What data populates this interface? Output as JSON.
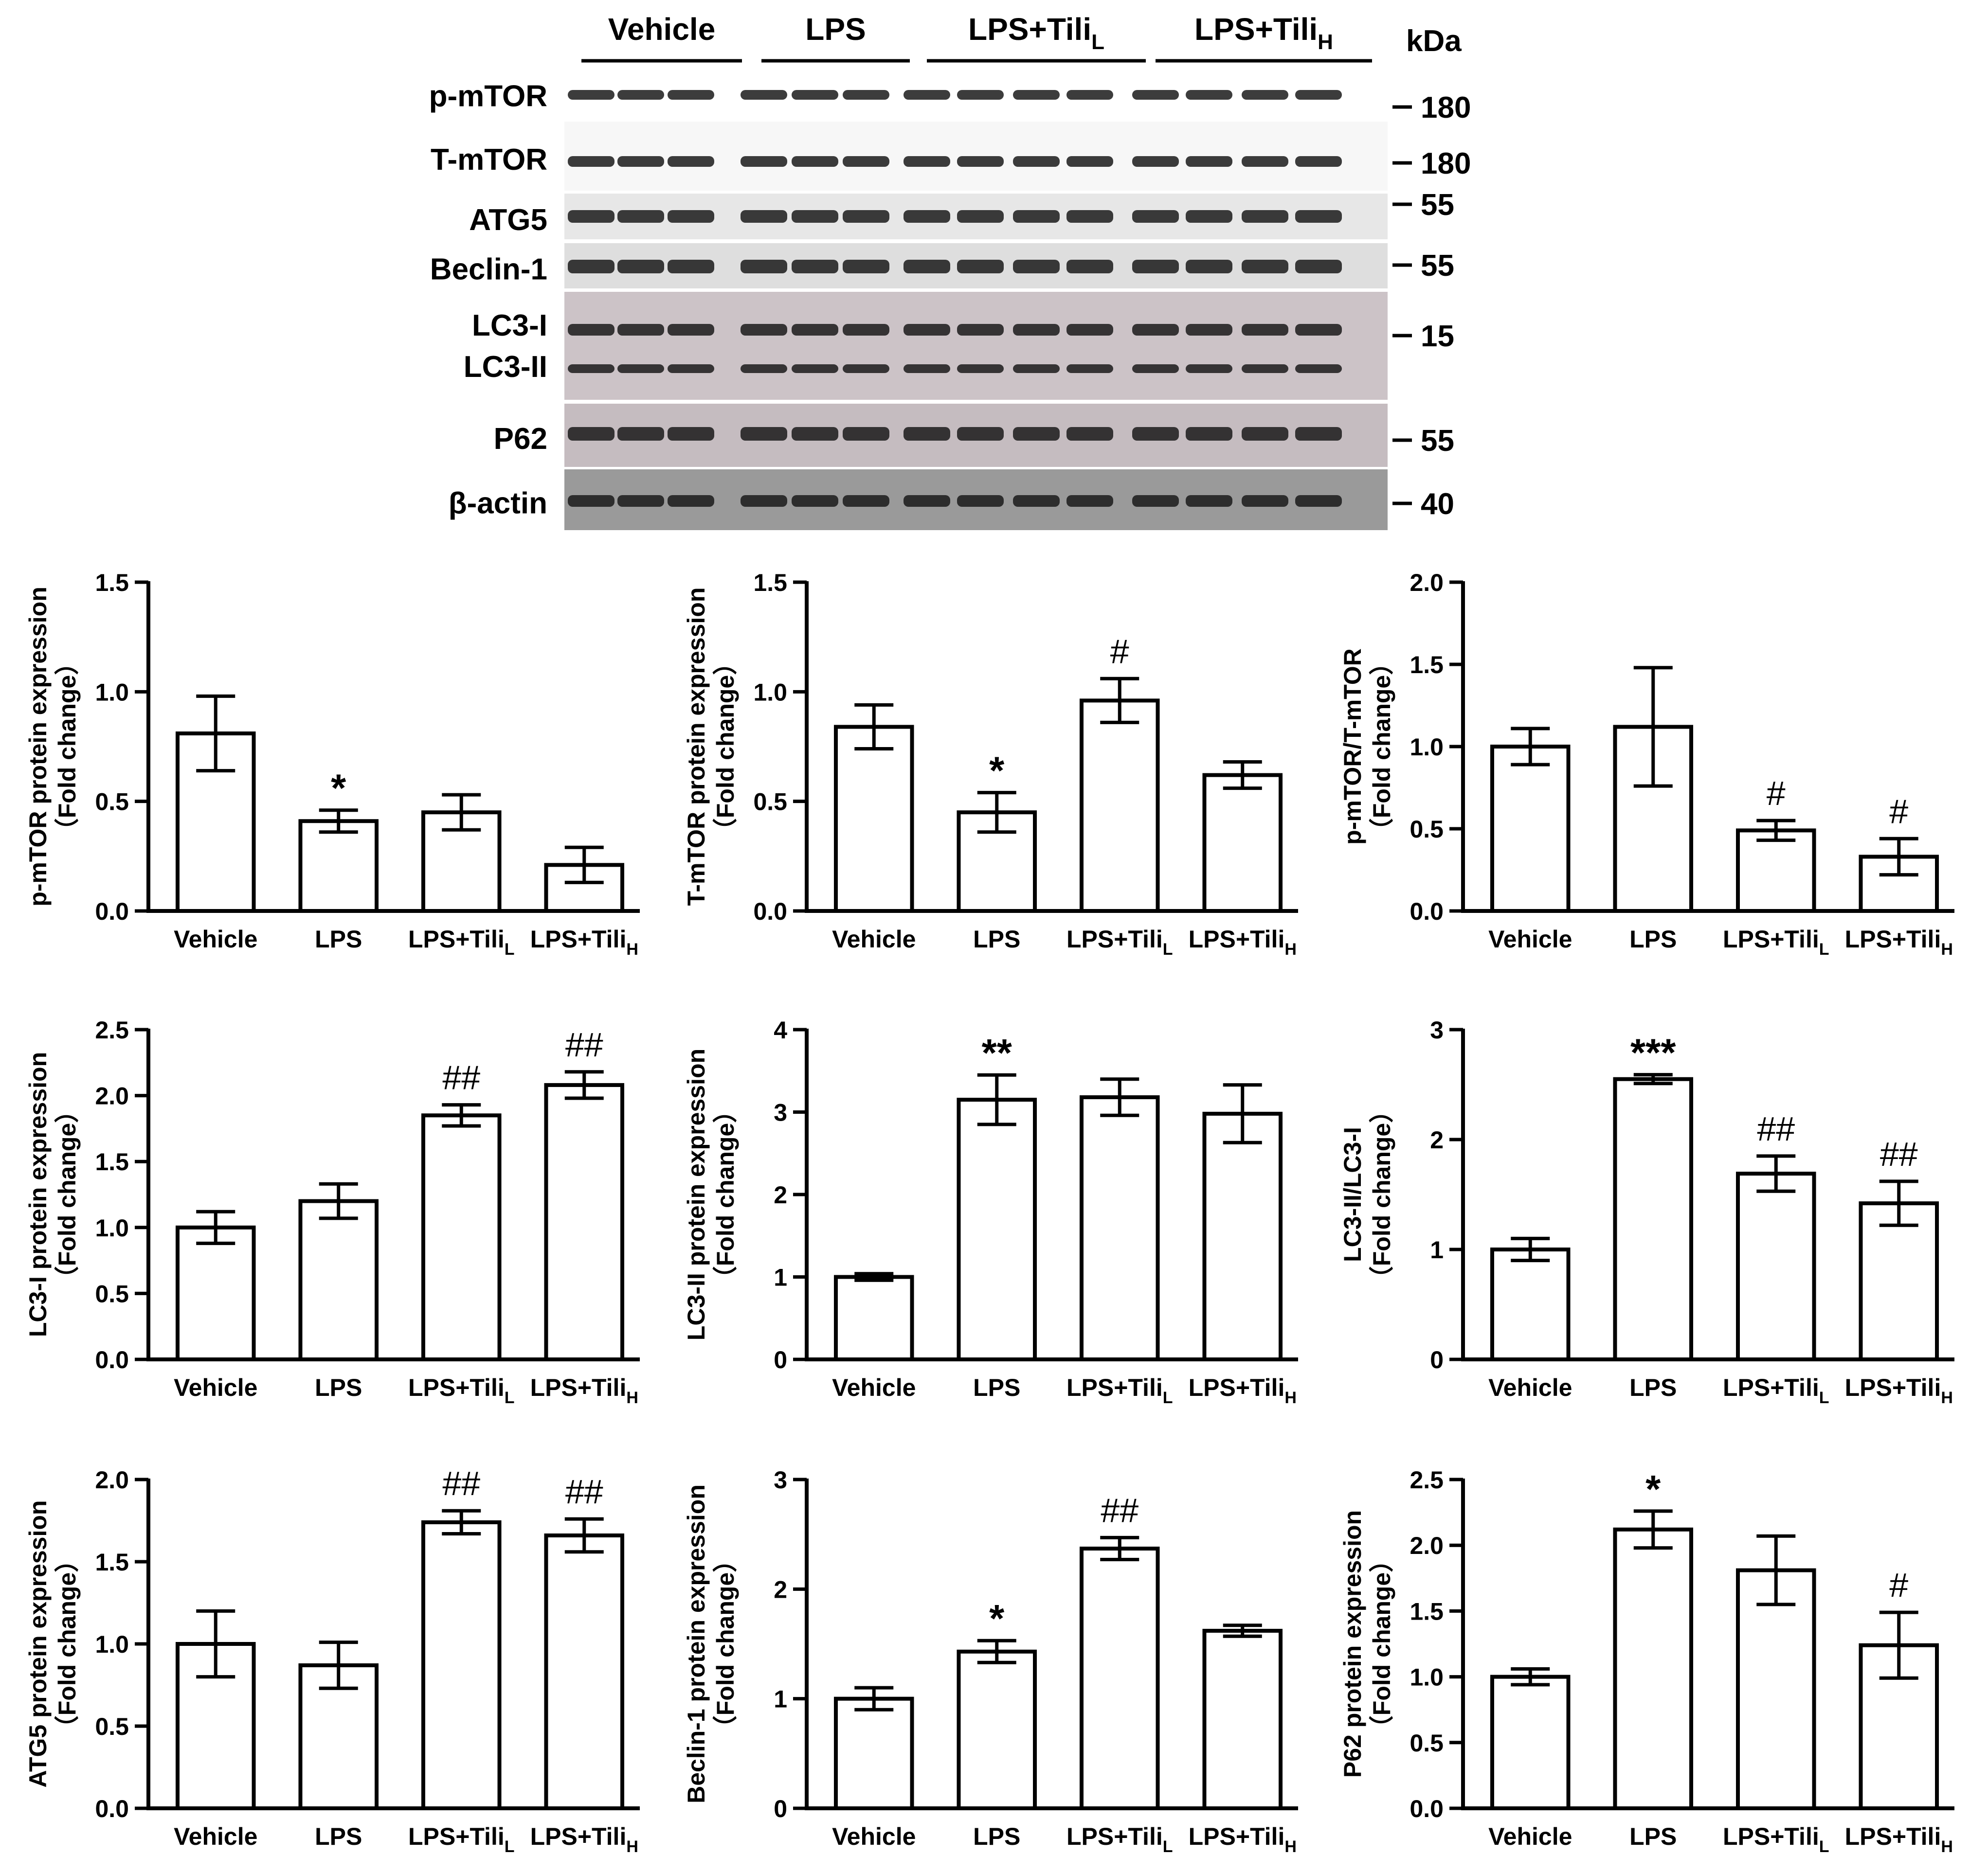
{
  "blot": {
    "groups": [
      {
        "name": "Vehicle",
        "sub": ""
      },
      {
        "name": "LPS",
        "sub": ""
      },
      {
        "name": "LPS+Tili",
        "sub": "L"
      },
      {
        "name": "LPS+Tili",
        "sub": "H"
      }
    ],
    "kda_label": "kDa",
    "rows": [
      {
        "labels": [
          "p-mTOR"
        ],
        "kda": [
          "180"
        ]
      },
      {
        "labels": [
          "T-mTOR"
        ],
        "kda": [
          "180"
        ]
      },
      {
        "labels": [
          "ATG5"
        ],
        "kda": [
          "55"
        ]
      },
      {
        "labels": [
          "Beclin-1"
        ],
        "kda": [
          "55"
        ]
      },
      {
        "labels": [
          "LC3-I",
          "LC3-II"
        ],
        "kda": [
          "15"
        ]
      },
      {
        "labels": [
          "P62"
        ],
        "kda": [
          "55"
        ]
      },
      {
        "labels": [
          "β-actin"
        ],
        "kda": [
          "40"
        ]
      }
    ]
  },
  "chart_data": [
    {
      "type": "bar",
      "ylabel": "p-mTOR protein expression",
      "ylabel2": "（Fold change）",
      "categories": [
        "Vehicle",
        "LPS",
        "LPS+Tili",
        "LPS+Tili"
      ],
      "category_subs": [
        "",
        "",
        "L",
        "H"
      ],
      "ylim": [
        0,
        1.5
      ],
      "yticks": [
        "0.0",
        "0.5",
        "1.0",
        "1.5"
      ],
      "values": [
        0.81,
        0.41,
        0.45,
        0.21
      ],
      "errors": [
        0.17,
        0.05,
        0.08,
        0.08
      ],
      "annotations": [
        "",
        "*",
        "",
        ""
      ]
    },
    {
      "type": "bar",
      "ylabel": "T-mTOR protein expression",
      "ylabel2": "（Fold change）",
      "categories": [
        "Vehicle",
        "LPS",
        "LPS+Tili",
        "LPS+Tili"
      ],
      "category_subs": [
        "",
        "",
        "L",
        "H"
      ],
      "ylim": [
        0,
        1.5
      ],
      "yticks": [
        "0.0",
        "0.5",
        "1.0",
        "1.5"
      ],
      "values": [
        0.84,
        0.45,
        0.96,
        0.62
      ],
      "errors": [
        0.1,
        0.09,
        0.1,
        0.06
      ],
      "annotations": [
        "",
        "*",
        "#",
        ""
      ]
    },
    {
      "type": "bar",
      "ylabel": "p-mTOR/T-mTOR",
      "ylabel2": "（Fold change）",
      "categories": [
        "Vehicle",
        "LPS",
        "LPS+Tili",
        "LPS+Tili"
      ],
      "category_subs": [
        "",
        "",
        "L",
        "H"
      ],
      "ylim": [
        0,
        2.0
      ],
      "yticks": [
        "0.0",
        "0.5",
        "1.0",
        "1.5",
        "2.0"
      ],
      "values": [
        1.0,
        1.12,
        0.49,
        0.33
      ],
      "errors": [
        0.11,
        0.36,
        0.06,
        0.11
      ],
      "annotations": [
        "",
        "",
        "#",
        "#"
      ]
    },
    {
      "type": "bar",
      "ylabel": "LC3-I protein expression",
      "ylabel2": "（Fold change）",
      "categories": [
        "Vehicle",
        "LPS",
        "LPS+Tili",
        "LPS+Tili"
      ],
      "category_subs": [
        "",
        "",
        "L",
        "H"
      ],
      "ylim": [
        0,
        2.5
      ],
      "yticks": [
        "0.0",
        "0.5",
        "1.0",
        "1.5",
        "2.0",
        "2.5"
      ],
      "values": [
        1.0,
        1.2,
        1.85,
        2.08
      ],
      "errors": [
        0.12,
        0.13,
        0.08,
        0.1
      ],
      "annotations": [
        "",
        "",
        "##",
        "##"
      ]
    },
    {
      "type": "bar",
      "ylabel": "LC3-II protein expression",
      "ylabel2": "（Fold change）",
      "categories": [
        "Vehicle",
        "LPS",
        "LPS+Tili",
        "LPS+Tili"
      ],
      "category_subs": [
        "",
        "",
        "L",
        "H"
      ],
      "ylim": [
        0,
        4
      ],
      "yticks": [
        "0",
        "1",
        "2",
        "3",
        "4"
      ],
      "values": [
        1.0,
        3.15,
        3.18,
        2.98
      ],
      "errors": [
        0.04,
        0.3,
        0.22,
        0.35
      ],
      "annotations": [
        "",
        "**",
        "",
        ""
      ]
    },
    {
      "type": "bar",
      "ylabel": "LC3-II/LC3-I",
      "ylabel2": "（Fold change）",
      "categories": [
        "Vehicle",
        "LPS",
        "LPS+Tili",
        "LPS+Tili"
      ],
      "category_subs": [
        "",
        "",
        "L",
        "H"
      ],
      "ylim": [
        0,
        3
      ],
      "yticks": [
        "0",
        "1",
        "2",
        "3"
      ],
      "values": [
        1.0,
        2.55,
        1.69,
        1.42
      ],
      "errors": [
        0.1,
        0.04,
        0.16,
        0.2
      ],
      "annotations": [
        "",
        "***",
        "##",
        "##"
      ]
    },
    {
      "type": "bar",
      "ylabel": "ATG5 protein expression",
      "ylabel2": "（Fold change）",
      "categories": [
        "Vehicle",
        "LPS",
        "LPS+Tili",
        "LPS+Tili"
      ],
      "category_subs": [
        "",
        "",
        "L",
        "H"
      ],
      "ylim": [
        0,
        2.0
      ],
      "yticks": [
        "0.0",
        "0.5",
        "1.0",
        "1.5",
        "2.0"
      ],
      "values": [
        1.0,
        0.87,
        1.74,
        1.66
      ],
      "errors": [
        0.2,
        0.14,
        0.07,
        0.1
      ],
      "annotations": [
        "",
        "",
        "##",
        "##"
      ]
    },
    {
      "type": "bar",
      "ylabel": "Beclin-1 protein expression",
      "ylabel2": "（Fold change）",
      "categories": [
        "Vehicle",
        "LPS",
        "LPS+Tili",
        "LPS+Tili"
      ],
      "category_subs": [
        "",
        "",
        "L",
        "H"
      ],
      "ylim": [
        0,
        3
      ],
      "yticks": [
        "0",
        "1",
        "2",
        "3"
      ],
      "values": [
        1.0,
        1.43,
        2.37,
        1.62
      ],
      "errors": [
        0.1,
        0.1,
        0.1,
        0.05
      ],
      "annotations": [
        "",
        "*",
        "##",
        ""
      ]
    },
    {
      "type": "bar",
      "ylabel": "P62 protein expression",
      "ylabel2": "（Fold change）",
      "categories": [
        "Vehicle",
        "LPS",
        "LPS+Tili",
        "LPS+Tili"
      ],
      "category_subs": [
        "",
        "",
        "L",
        "H"
      ],
      "ylim": [
        0,
        2.5
      ],
      "yticks": [
        "0.0",
        "0.5",
        "1.0",
        "1.5",
        "2.0",
        "2.5"
      ],
      "values": [
        1.0,
        2.12,
        1.81,
        1.24
      ],
      "errors": [
        0.06,
        0.14,
        0.26,
        0.25
      ],
      "annotations": [
        "",
        "*",
        "",
        "#"
      ]
    }
  ]
}
